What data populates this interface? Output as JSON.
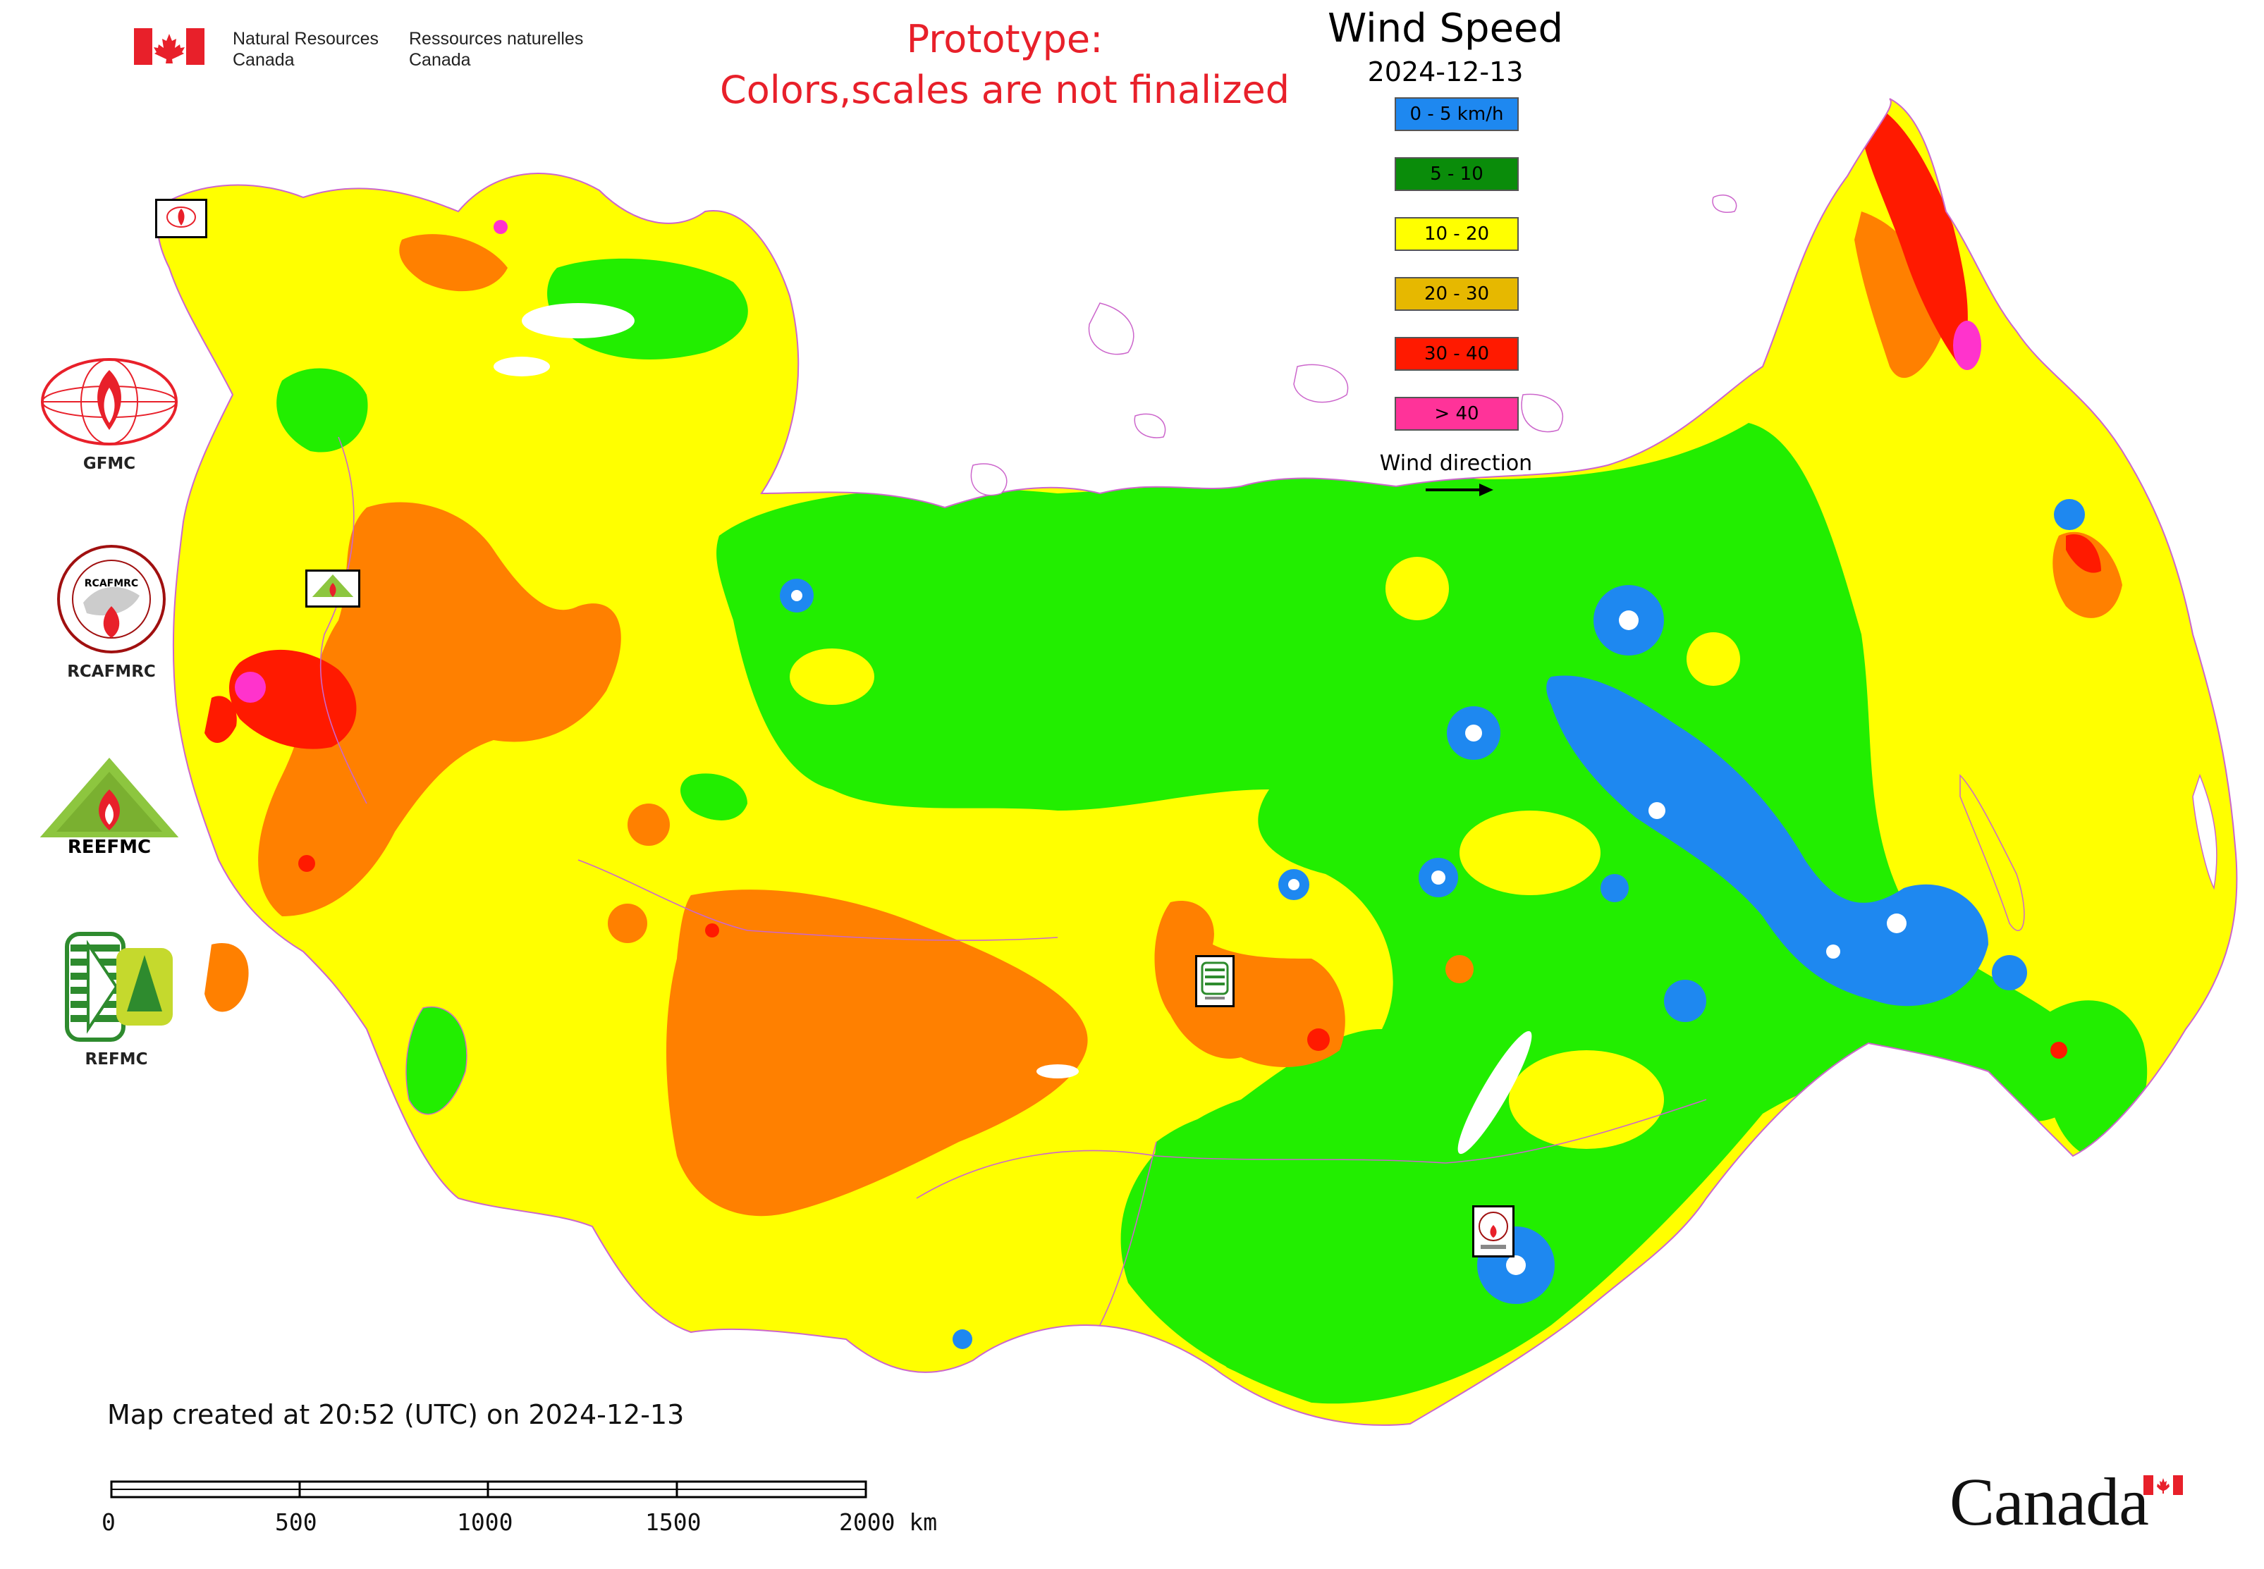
{
  "header": {
    "dept_en_line1": "Natural Resources",
    "dept_en_line2": "Canada",
    "dept_fr_line1": "Ressources naturelles",
    "dept_fr_line2": "Canada",
    "prototype_line1": "Prototype:",
    "prototype_line2": "Colors,scales are not finalized"
  },
  "legend": {
    "title": "Wind Speed",
    "date": "2024-12-13",
    "items": [
      {
        "label": "0 - 5 km/h",
        "color": "#1e88f0"
      },
      {
        "label": "5 - 10",
        "color": "#0a8c0a"
      },
      {
        "label": "10 - 20",
        "color": "#ffff00"
      },
      {
        "label": "20 - 30",
        "color": "#e6b800"
      },
      {
        "label": "30 - 40",
        "color": "#ff1a00"
      },
      {
        "label": "> 40",
        "color": "#ff3399"
      }
    ],
    "direction_label": "Wind direction"
  },
  "map_colors": {
    "calm": "#1e88f0",
    "light_green": "#22ee00",
    "yellow": "#ffff00",
    "orange": "#ff8000",
    "red": "#ff1a00",
    "magenta": "#ff33cc",
    "boundary": "#cc66cc"
  },
  "organizations": {
    "gfmc": "GFMC",
    "rcafmrc": "RCAFMRC",
    "reefmc": "REEFMC",
    "refmc": "REFMC",
    "reefmc_logo_text": "REEFMC"
  },
  "footer": {
    "created": "Map created at 20:52 (UTC) on 2024-12-13",
    "scale_labels": [
      "0",
      "500",
      "1000",
      "1500",
      "2000 km"
    ],
    "wordmark": "Canada"
  }
}
